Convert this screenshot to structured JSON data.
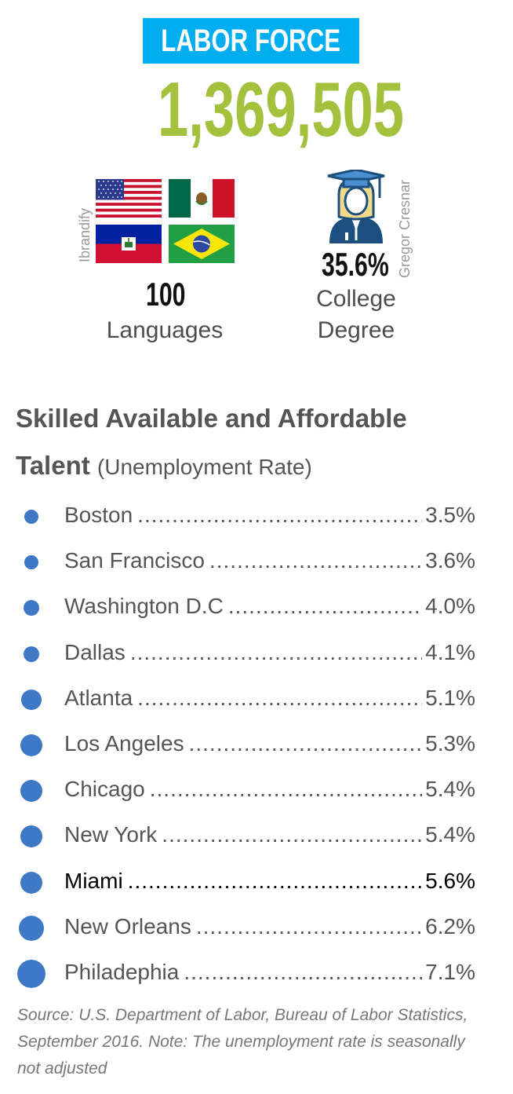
{
  "header": {
    "title": "LABOR FORCE",
    "value": "1,369,505"
  },
  "stats": {
    "languages": {
      "value": "100",
      "label": "Languages",
      "credit": "Ibrandify"
    },
    "college": {
      "value": "35.6%",
      "label_line1": "College",
      "label_line2": "Degree",
      "credit": "Gregor Cresnar"
    }
  },
  "colors": {
    "banner": "#00aeef",
    "big_number": "#a4c13d",
    "dot": "#3f78c4",
    "graduate_icon_blue": "#1d4f7e",
    "graduate_icon_cap": "#4b8fd1",
    "graduate_icon_hair": "#f3d98c"
  },
  "icons": [
    "flag-usa-icon",
    "flag-mexico-icon",
    "flag-haiti-icon",
    "flag-brazil-icon",
    "graduate-icon"
  ],
  "talent": {
    "title_line1": "Skilled Available and Affordable",
    "title_line2_bold": "Talent",
    "title_line2_note": "(Unemployment Rate)",
    "cities": [
      {
        "city": "Boston",
        "rate": "3.5%",
        "highlight": false
      },
      {
        "city": "San Francisco",
        "rate": "3.6%",
        "highlight": false
      },
      {
        "city": "Washington D.C",
        "rate": "4.0%",
        "highlight": false
      },
      {
        "city": "Dallas",
        "rate": "4.1%",
        "highlight": false
      },
      {
        "city": "Atlanta",
        "rate": "5.1%",
        "highlight": false
      },
      {
        "city": "Los Angeles",
        "rate": "5.3%",
        "highlight": false
      },
      {
        "city": "Chicago",
        "rate": "5.4%",
        "highlight": false
      },
      {
        "city": "New York",
        "rate": "5.4%",
        "highlight": false
      },
      {
        "city": "Miami",
        "rate": "5.6%",
        "highlight": true
      },
      {
        "city": "New Orleans",
        "rate": "6.2%",
        "highlight": false
      },
      {
        "city": "Philadephia",
        "rate": "7.1%",
        "highlight": false
      }
    ]
  },
  "source": "Source: U.S. Department of Labor, Bureau of Labor Statistics, September 2016. Note: The unemployment rate is seasonally not adjusted"
}
